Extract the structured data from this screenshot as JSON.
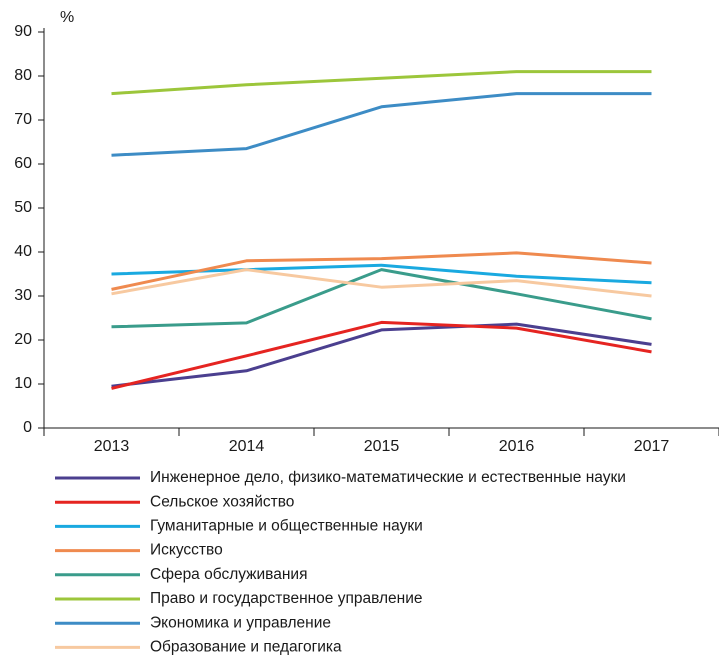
{
  "chart_data": {
    "type": "line",
    "y_label": "%",
    "categories": [
      "2013",
      "2014",
      "2015",
      "2016",
      "2017"
    ],
    "ylim": [
      0,
      90
    ],
    "yticks": [
      0,
      10,
      20,
      30,
      40,
      50,
      60,
      70,
      80,
      90
    ],
    "series": [
      {
        "name": "Инженерное дело, физико-математические и естественные науки",
        "color": "#4b3f8f",
        "values": [
          9.5,
          13,
          22.3,
          23.6,
          19
        ]
      },
      {
        "name": "Сельское хозяйство",
        "color": "#e52421",
        "values": [
          9,
          16.4,
          24,
          22.7,
          17.3
        ]
      },
      {
        "name": "Гуманитарные и общественные науки",
        "color": "#1aa9e0",
        "values": [
          35,
          36,
          37,
          34.5,
          33
        ]
      },
      {
        "name": "Искусство",
        "color": "#ef8a4f",
        "values": [
          31.5,
          38,
          38.5,
          39.8,
          37.5
        ]
      },
      {
        "name": "Сфера обслуживания",
        "color": "#3a9c8b",
        "values": [
          23,
          23.9,
          36,
          30.5,
          24.8
        ]
      },
      {
        "name": "Право и государственное управление",
        "color": "#9cc63b",
        "values": [
          76,
          78,
          79.5,
          81,
          81
        ]
      },
      {
        "name": "Экономика и управление",
        "color": "#3d8cc5",
        "values": [
          62,
          63.5,
          73,
          76,
          76
        ]
      },
      {
        "name": "Образование и педагогика",
        "color": "#f7c9a0",
        "values": [
          30.5,
          36,
          32,
          33.5,
          30
        ]
      }
    ]
  }
}
